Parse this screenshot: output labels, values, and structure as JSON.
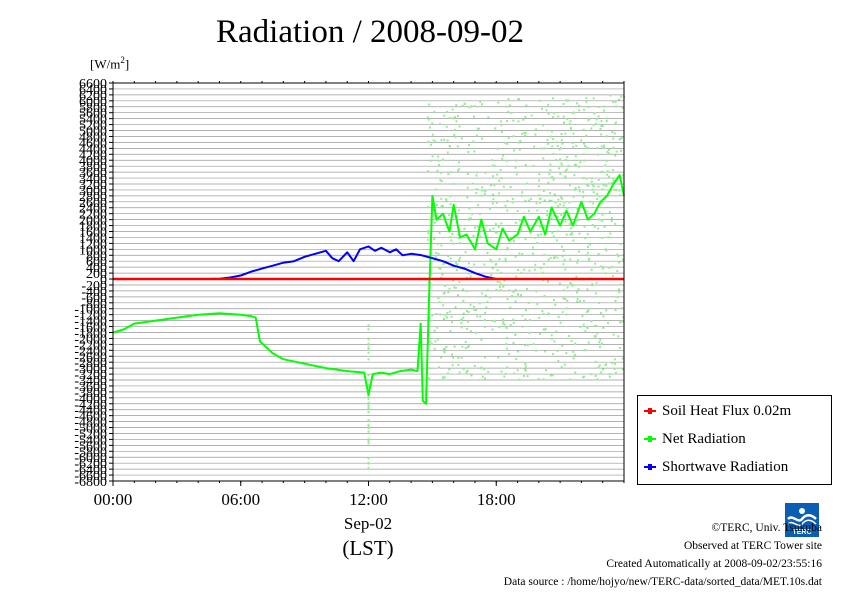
{
  "title": "Radiation / 2008-09-02",
  "unit_label": {
    "base": "[W/m",
    "sup": "2",
    "close": "]"
  },
  "x_axis": {
    "ticks": [
      "00:00",
      "06:00",
      "12:00",
      "18:00"
    ],
    "date_label": "Sep-02",
    "unit_label": "(LST)"
  },
  "legend": [
    {
      "name": "Soil Heat Flux 0.02m",
      "color": "#ff0000"
    },
    {
      "name": "Net Radiation",
      "color": "#00ff00"
    },
    {
      "name": "Shortwave Radiation",
      "color": "#0000ff"
    }
  ],
  "credits": {
    "copyright": "©TERC, Univ. Tsukuba",
    "observed": "Observed at TERC Tower site",
    "created": "Created Automatically at 2008-09-02/23:55:16",
    "source": "Data source : /home/hojyo/new/TERC-data/sorted_data/MET.10s.dat"
  },
  "logo": {
    "text": "TERC",
    "icon": "terc-logo-icon"
  },
  "chart_data": {
    "type": "line",
    "title": "Radiation / 2008-09-02",
    "ylabel": "[W/m2]",
    "xlabel": "(LST)",
    "xlim": [
      0,
      24
    ],
    "ylim": [
      -6800,
      6600
    ],
    "y_ticks": [
      6600,
      6400,
      6200,
      6000,
      5800,
      5600,
      5400,
      5200,
      5000,
      4800,
      4600,
      4400,
      4200,
      4000,
      3800,
      3600,
      3400,
      3200,
      3000,
      2800,
      2600,
      2400,
      2200,
      2000,
      1800,
      1600,
      1400,
      1200,
      1000,
      800,
      600,
      400,
      200,
      0,
      -200,
      -400,
      -600,
      -800,
      -1000,
      -1200,
      -1400,
      -1600,
      -1800,
      -2000,
      -2200,
      -2400,
      -2600,
      -2800,
      -3000,
      -3200,
      -3400,
      -3600,
      -3800,
      -4000,
      -4200,
      -4400,
      -4600,
      -4800,
      -5000,
      -5200,
      -5400,
      -5600,
      -5800,
      -6000,
      -6200,
      -6400,
      -6600,
      -6800
    ],
    "grid": true,
    "legend_position": "bottom-right",
    "series": [
      {
        "name": "Soil Heat Flux 0.02m",
        "color": "#ff0000",
        "x": [
          0,
          24
        ],
        "y": [
          0,
          0
        ]
      },
      {
        "name": "Net Radiation",
        "color": "#00ff00",
        "x": [
          0,
          0.5,
          1,
          2,
          3,
          4,
          5,
          6,
          6.5,
          6.7,
          6.9,
          7.5,
          8,
          9,
          10,
          11,
          11.8,
          12,
          12.2,
          12.6,
          13,
          13.5,
          14,
          14.3,
          14.45,
          14.55,
          14.7,
          14.85,
          15,
          15.2,
          15.5,
          15.8,
          16,
          16.3,
          16.6,
          17,
          17.3,
          17.6,
          18,
          18.3,
          18.6,
          19,
          19.3,
          19.6,
          20,
          20.3,
          20.6,
          21,
          21.3,
          21.6,
          22,
          22.3,
          22.6,
          22.9,
          23.2,
          23.5,
          23.8,
          24
        ],
        "y": [
          -1800,
          -1700,
          -1500,
          -1400,
          -1300,
          -1200,
          -1150,
          -1200,
          -1250,
          -1300,
          -2100,
          -2500,
          -2700,
          -2850,
          -3000,
          -3100,
          -3150,
          -3900,
          -3200,
          -3150,
          -3200,
          -3100,
          -3050,
          -3100,
          -1500,
          -4100,
          -4200,
          -500,
          2800,
          2000,
          2200,
          1600,
          2500,
          1400,
          1500,
          1000,
          2000,
          1200,
          1000,
          1700,
          1300,
          1500,
          2100,
          1600,
          2100,
          1500,
          2400,
          1800,
          2300,
          1800,
          2600,
          2000,
          2200,
          2600,
          2800,
          3200,
          3500,
          2800
        ]
      },
      {
        "name": "Shortwave Radiation",
        "color": "#0000ff",
        "x": [
          0,
          4.5,
          5,
          5.5,
          6,
          6.5,
          7,
          7.5,
          8,
          8.5,
          9,
          9.5,
          10,
          10.3,
          10.6,
          11,
          11.3,
          11.6,
          12,
          12.3,
          12.6,
          13,
          13.3,
          13.6,
          14,
          14.5,
          15,
          15.5,
          16,
          16.5,
          17,
          17.5,
          18,
          24
        ],
        "y": [
          0,
          0,
          10,
          50,
          120,
          250,
          350,
          450,
          550,
          600,
          750,
          850,
          950,
          700,
          600,
          900,
          600,
          1000,
          1100,
          950,
          1050,
          900,
          1000,
          800,
          850,
          800,
          700,
          600,
          450,
          350,
          200,
          80,
          0,
          0
        ]
      }
    ]
  }
}
